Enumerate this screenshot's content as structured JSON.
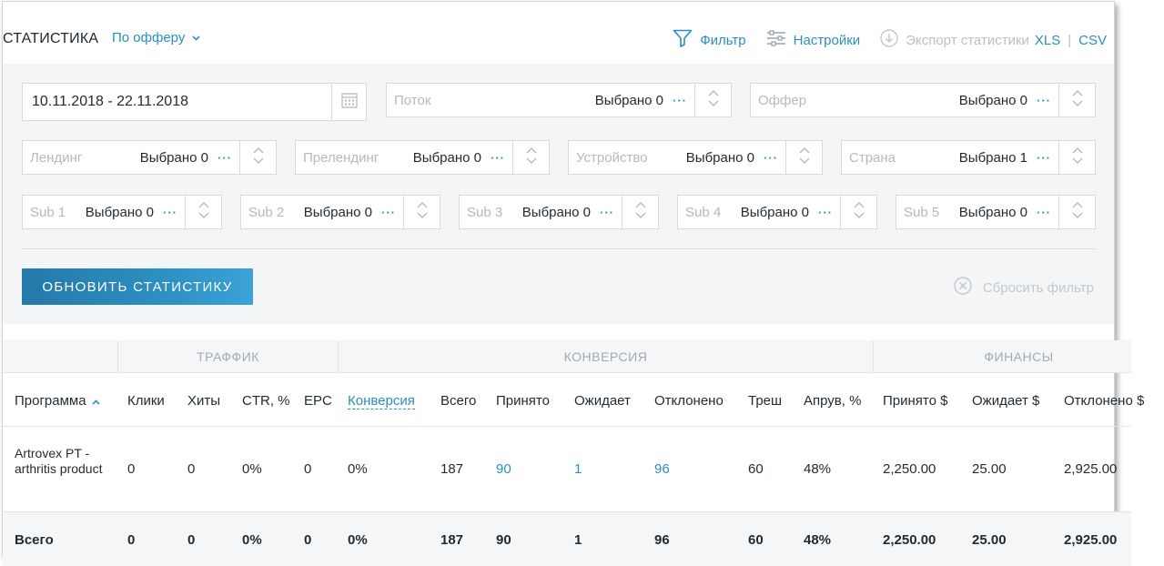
{
  "header": {
    "title": "СТАТИСТИКА",
    "mode": "По офферу",
    "filter_label": "Фильтр",
    "settings_label": "Настройки",
    "export_label": "Экспорт статистики",
    "xls_label": "XLS",
    "separator": "|",
    "csv_label": "CSV"
  },
  "filters": {
    "date_range": "10.11.2018 - 22.11.2018",
    "row1": [
      {
        "placeholder": "Поток",
        "selected": "Выбрано 0"
      },
      {
        "placeholder": "Оффер",
        "selected": "Выбрано 0"
      }
    ],
    "row2": [
      {
        "placeholder": "Лендинг",
        "selected": "Выбрано 0"
      },
      {
        "placeholder": "Прелендинг",
        "selected": "Выбрано 0"
      },
      {
        "placeholder": "Устройство",
        "selected": "Выбрано 0"
      },
      {
        "placeholder": "Страна",
        "selected": "Выбрано 1"
      }
    ],
    "row3": [
      {
        "placeholder": "Sub 1",
        "selected": "Выбрано 0"
      },
      {
        "placeholder": "Sub 2",
        "selected": "Выбрано 0"
      },
      {
        "placeholder": "Sub 3",
        "selected": "Выбрано 0"
      },
      {
        "placeholder": "Sub 4",
        "selected": "Выбрано 0"
      },
      {
        "placeholder": "Sub 5",
        "selected": "Выбрано 0"
      }
    ],
    "dots": "···",
    "update_button": "ОБНОВИТЬ СТАТИСТИКУ",
    "reset_label": "Сбросить фильтр"
  },
  "table": {
    "groups": [
      "ТРАФФИК",
      "КОНВЕРСИЯ",
      "ФИНАНСЫ"
    ],
    "columns": [
      "Программа",
      "Клики",
      "Хиты",
      "CTR, %",
      "EPC",
      "Конверсия",
      "Всего",
      "Принято",
      "Ожидает",
      "Отклонено",
      "Треш",
      "Апрув, %",
      "Принято $",
      "Ожидает $",
      "Отклонено $"
    ],
    "rows": [
      {
        "program": "Artrovex PT - arthritis product",
        "cells": [
          "0",
          "0",
          "0%",
          "0",
          "0%",
          "187",
          "90",
          "1",
          "96",
          "60",
          "48%",
          "2,250.00",
          "25.00",
          "2,925.00"
        ]
      }
    ],
    "totals": {
      "label": "Всего",
      "cells": [
        "0",
        "0",
        "0%",
        "0",
        "0%",
        "187",
        "90",
        "1",
        "96",
        "60",
        "48%",
        "2,250.00",
        "25.00",
        "2,925.00"
      ]
    }
  },
  "colors": {
    "accent": "#2a8fbd",
    "button": "#2d8fc2",
    "panel": "#f3f5f7",
    "muted": "#b3bac0"
  },
  "icons": [
    "chevron-down-icon",
    "filter-icon",
    "settings-sliders-icon",
    "download-icon",
    "calendar-icon",
    "spinner-arrows-icon",
    "close-circle-icon",
    "sort-asc-icon"
  ]
}
